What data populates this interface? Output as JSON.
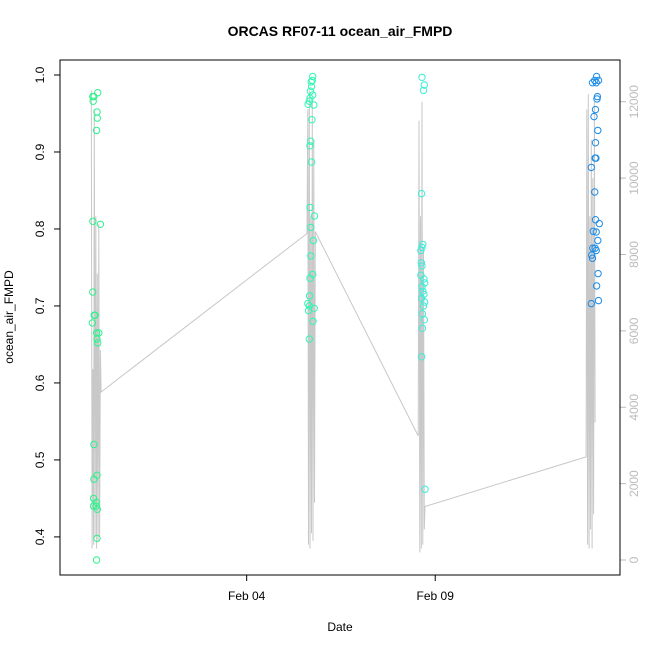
{
  "chart_data": {
    "type": "scatter",
    "title": "ORCAS RF07-11 ocean_air_FMPD",
    "xlabel": "Date",
    "ylabel": "ocean_air_FMPD",
    "x_ticks": [
      {
        "label": "Feb 04",
        "value": 4
      },
      {
        "label": "Feb 09",
        "value": 9
      }
    ],
    "xlim": [
      -0.95,
      13.9
    ],
    "y_ticks": [
      0.4,
      0.5,
      0.6,
      0.7,
      0.8,
      0.9,
      1.0
    ],
    "ylim": [
      0.37,
      1.0
    ],
    "y2_ticks": [
      0,
      2000,
      4000,
      6000,
      8000,
      10000,
      12000
    ],
    "y2lim": [
      0,
      12700
    ],
    "y2_color": "#bbbbbb",
    "line_color": "#c8c8c8",
    "grid": false,
    "series": [
      {
        "color": "#2ef28c",
        "points": [
          {
            "x": -0.08,
            "y": 0.972
          },
          {
            "x": -0.07,
            "y": 0.966
          },
          {
            "x": -0.05,
            "y": 0.972
          },
          {
            "x": -0.08,
            "y": 0.81
          },
          {
            "x": -0.08,
            "y": 0.718
          },
          {
            "x": -0.09,
            "y": 0.678
          },
          {
            "x": -0.04,
            "y": 0.688
          },
          {
            "x": -0.02,
            "y": 0.688
          },
          {
            "x": -0.05,
            "y": 0.52
          },
          {
            "x": -0.05,
            "y": 0.475
          },
          {
            "x": -0.06,
            "y": 0.45
          },
          {
            "x": -0.06,
            "y": 0.44
          },
          {
            "x": 0.05,
            "y": 0.977
          },
          {
            "x": 0.03,
            "y": 0.952
          },
          {
            "x": 0.04,
            "y": 0.944
          },
          {
            "x": 0.02,
            "y": 0.928
          },
          {
            "x": 0.12,
            "y": 0.806
          },
          {
            "x": 0.02,
            "y": 0.665
          },
          {
            "x": 0.08,
            "y": 0.665
          },
          {
            "x": 0.03,
            "y": 0.657
          },
          {
            "x": 0.05,
            "y": 0.652
          },
          {
            "x": 0.03,
            "y": 0.48
          },
          {
            "x": 0.01,
            "y": 0.445
          },
          {
            "x": 0.01,
            "y": 0.44
          },
          {
            "x": 0.04,
            "y": 0.436
          },
          {
            "x": 0.03,
            "y": 0.398
          },
          {
            "x": 0.02,
            "y": 0.37
          }
        ]
      },
      {
        "color": "#33f5b4",
        "points": [
          {
            "x": 5.75,
            "y": 0.998
          },
          {
            "x": 5.74,
            "y": 0.993
          },
          {
            "x": 5.71,
            "y": 0.991
          },
          {
            "x": 5.72,
            "y": 0.985
          },
          {
            "x": 5.69,
            "y": 0.979
          },
          {
            "x": 5.75,
            "y": 0.974
          },
          {
            "x": 5.68,
            "y": 0.97
          },
          {
            "x": 5.66,
            "y": 0.966
          },
          {
            "x": 5.63,
            "y": 0.962
          },
          {
            "x": 5.78,
            "y": 0.961
          },
          {
            "x": 5.73,
            "y": 0.942
          },
          {
            "x": 5.7,
            "y": 0.914
          },
          {
            "x": 5.68,
            "y": 0.908
          },
          {
            "x": 5.72,
            "y": 0.887
          },
          {
            "x": 5.68,
            "y": 0.828
          },
          {
            "x": 5.8,
            "y": 0.817
          },
          {
            "x": 5.7,
            "y": 0.802
          },
          {
            "x": 5.77,
            "y": 0.785
          },
          {
            "x": 5.7,
            "y": 0.765
          },
          {
            "x": 5.75,
            "y": 0.741
          },
          {
            "x": 5.68,
            "y": 0.736
          },
          {
            "x": 5.67,
            "y": 0.713
          },
          {
            "x": 5.62,
            "y": 0.703
          },
          {
            "x": 5.66,
            "y": 0.7
          },
          {
            "x": 5.64,
            "y": 0.694
          },
          {
            "x": 5.79,
            "y": 0.697
          },
          {
            "x": 5.76,
            "y": 0.68
          },
          {
            "x": 5.66,
            "y": 0.657
          }
        ]
      },
      {
        "color": "#39eed8",
        "points": [
          {
            "x": 8.65,
            "y": 0.997
          },
          {
            "x": 8.71,
            "y": 0.987
          },
          {
            "x": 8.69,
            "y": 0.98
          },
          {
            "x": 8.64,
            "y": 0.846
          },
          {
            "x": 8.67,
            "y": 0.78
          },
          {
            "x": 8.65,
            "y": 0.776
          },
          {
            "x": 8.62,
            "y": 0.772
          },
          {
            "x": 8.63,
            "y": 0.756
          },
          {
            "x": 8.65,
            "y": 0.752
          },
          {
            "x": 8.62,
            "y": 0.74
          },
          {
            "x": 8.7,
            "y": 0.735
          },
          {
            "x": 8.72,
            "y": 0.73
          },
          {
            "x": 8.65,
            "y": 0.725
          },
          {
            "x": 8.67,
            "y": 0.719
          },
          {
            "x": 8.7,
            "y": 0.715
          },
          {
            "x": 8.64,
            "y": 0.71
          },
          {
            "x": 8.72,
            "y": 0.705
          },
          {
            "x": 8.69,
            "y": 0.7
          },
          {
            "x": 8.66,
            "y": 0.69
          },
          {
            "x": 8.71,
            "y": 0.682
          },
          {
            "x": 8.66,
            "y": 0.671
          },
          {
            "x": 8.64,
            "y": 0.634
          },
          {
            "x": 8.73,
            "y": 0.462
          }
        ]
      },
      {
        "color": "#1b8be8",
        "points": [
          {
            "x": 13.28,
            "y": 0.998
          },
          {
            "x": 13.23,
            "y": 0.993
          },
          {
            "x": 13.33,
            "y": 0.993
          },
          {
            "x": 13.17,
            "y": 0.99
          },
          {
            "x": 13.27,
            "y": 0.99
          },
          {
            "x": 13.3,
            "y": 0.972
          },
          {
            "x": 13.29,
            "y": 0.969
          },
          {
            "x": 13.25,
            "y": 0.955
          },
          {
            "x": 13.21,
            "y": 0.946
          },
          {
            "x": 13.31,
            "y": 0.928
          },
          {
            "x": 13.25,
            "y": 0.912
          },
          {
            "x": 13.26,
            "y": 0.892
          },
          {
            "x": 13.24,
            "y": 0.892
          },
          {
            "x": 13.14,
            "y": 0.88
          },
          {
            "x": 13.23,
            "y": 0.848
          },
          {
            "x": 13.25,
            "y": 0.812
          },
          {
            "x": 13.35,
            "y": 0.807
          },
          {
            "x": 13.19,
            "y": 0.797
          },
          {
            "x": 13.27,
            "y": 0.796
          },
          {
            "x": 13.31,
            "y": 0.785
          },
          {
            "x": 13.24,
            "y": 0.775
          },
          {
            "x": 13.18,
            "y": 0.775
          },
          {
            "x": 13.27,
            "y": 0.772
          },
          {
            "x": 13.15,
            "y": 0.766
          },
          {
            "x": 13.17,
            "y": 0.762
          },
          {
            "x": 13.32,
            "y": 0.742
          },
          {
            "x": 13.28,
            "y": 0.726
          },
          {
            "x": 13.33,
            "y": 0.707
          },
          {
            "x": 13.14,
            "y": 0.703
          }
        ]
      }
    ],
    "line_series": {
      "name": "",
      "points": [
        {
          "x": -0.12,
          "y2": 12300
        },
        {
          "x": -0.1,
          "y2": 300
        },
        {
          "x": -0.08,
          "y2": 5000
        },
        {
          "x": -0.06,
          "y2": 400
        },
        {
          "x": -0.04,
          "y2": 11800
        },
        {
          "x": -0.02,
          "y2": 600
        },
        {
          "x": 0.0,
          "y2": 9000
        },
        {
          "x": 0.02,
          "y2": 300
        },
        {
          "x": 0.04,
          "y2": 7500
        },
        {
          "x": 0.06,
          "y2": 500
        },
        {
          "x": 0.08,
          "y2": 8800
        },
        {
          "x": 0.1,
          "y2": 600
        },
        {
          "x": 0.12,
          "y2": 5500
        },
        {
          "x": 0.14,
          "y2": 4400
        },
        {
          "x": 5.6,
          "y2": 8550
        },
        {
          "x": 5.62,
          "y2": 11800
        },
        {
          "x": 5.64,
          "y2": 400
        },
        {
          "x": 5.66,
          "y2": 12300
        },
        {
          "x": 5.68,
          "y2": 300
        },
        {
          "x": 5.7,
          "y2": 9000
        },
        {
          "x": 5.72,
          "y2": 700
        },
        {
          "x": 5.74,
          "y2": 12000
        },
        {
          "x": 5.76,
          "y2": 500
        },
        {
          "x": 5.78,
          "y2": 11000
        },
        {
          "x": 5.8,
          "y2": 1500
        },
        {
          "x": 5.82,
          "y2": 8600
        },
        {
          "x": 8.55,
          "y2": 3250
        },
        {
          "x": 8.57,
          "y2": 11500
        },
        {
          "x": 8.59,
          "y2": 200
        },
        {
          "x": 8.61,
          "y2": 9000
        },
        {
          "x": 8.63,
          "y2": 300
        },
        {
          "x": 8.65,
          "y2": 12000
        },
        {
          "x": 8.67,
          "y2": 400
        },
        {
          "x": 8.69,
          "y2": 8200
        },
        {
          "x": 8.71,
          "y2": 800
        },
        {
          "x": 8.73,
          "y2": 1400
        },
        {
          "x": 13.0,
          "y2": 2700
        },
        {
          "x": 13.02,
          "y2": 11800
        },
        {
          "x": 13.04,
          "y2": 400
        },
        {
          "x": 13.06,
          "y2": 12200
        },
        {
          "x": 13.08,
          "y2": 300
        },
        {
          "x": 13.1,
          "y2": 9000
        },
        {
          "x": 13.12,
          "y2": 800
        },
        {
          "x": 13.14,
          "y2": 11000
        },
        {
          "x": 13.16,
          "y2": 300
        },
        {
          "x": 13.18,
          "y2": 10000
        },
        {
          "x": 13.2,
          "y2": 1200
        },
        {
          "x": 13.22,
          "y2": 12000
        },
        {
          "x": 13.24,
          "y2": 3600
        }
      ]
    }
  }
}
